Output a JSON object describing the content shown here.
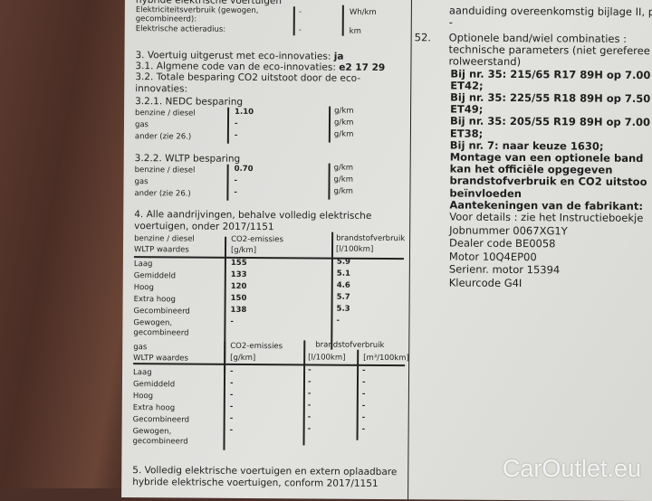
{
  "left": {
    "top_heading": "hybride elektrische voertuigen",
    "elec": [
      {
        "label": "Elektriciteitsverbruik (gewogen,",
        "label2": "gecombineerd):",
        "value": "-",
        "unit": "Wh/km"
      },
      {
        "label": "Elektrische actieradius:",
        "value": "-",
        "unit": "km"
      }
    ],
    "s3": "3. Voertuig uitgerust met eco-innovaties: ",
    "s3_val": "ja",
    "s31": "3.1. Algmene code van de eco-innovaties: ",
    "s31_val": "e2 17 29",
    "s32a": "3.2. Totale besparing CO2 uitstoot door de eco-",
    "s32b": "innovaties:",
    "nedc_title": "3.2.1. NEDC besparing",
    "nedc": [
      {
        "label": "benzine / diesel",
        "value": "1.10",
        "unit": "g/km"
      },
      {
        "label": "gas",
        "value": "-",
        "unit": "g/km"
      },
      {
        "label": "ander (zie 26.)",
        "value": "-",
        "unit": "g/km"
      }
    ],
    "wltp_title": "3.2.2. WLTP besparing",
    "wltp": [
      {
        "label": "benzine / diesel",
        "value": "0.70",
        "unit": "g/km"
      },
      {
        "label": "gas",
        "value": "-",
        "unit": "g/km"
      },
      {
        "label": "ander (zie 26.)",
        "value": "-",
        "unit": "g/km"
      }
    ],
    "s4a": "4. Alle aandrijvingen, behalve volledig elektrische",
    "s4b": "voertuigen, onder 2017/1151",
    "t1": {
      "h1a": "benzine / diesel",
      "h1b": "WLTP waardes",
      "h2a": "CO2-emissies",
      "h2b": "[g/km]",
      "h3a": "brandstofverbruik",
      "h3b": "[l/100km]",
      "rows": [
        {
          "l": "Laag",
          "c": "155",
          "f": "5.9"
        },
        {
          "l": "Gemiddeld",
          "c": "133",
          "f": "5.1"
        },
        {
          "l": "Hoog",
          "c": "120",
          "f": "4.6"
        },
        {
          "l": "Extra hoog",
          "c": "150",
          "f": "5.7"
        },
        {
          "l": "Gecombineerd",
          "c": "138",
          "f": "5.3"
        },
        {
          "l": "Gewogen,",
          "l2": "gecombineerd",
          "c": "-",
          "f": "-"
        }
      ]
    },
    "t2": {
      "h1a": "gas",
      "h1b": "WLTP waardes",
      "h2a": "CO2-emissies",
      "h2b": "[g/km]",
      "h3a": "brandstofverbruik",
      "h3b": "[l/100km]",
      "h4b": "[m³/100km]",
      "rows": [
        {
          "l": "Laag",
          "c": "-",
          "f": "-",
          "g": "-"
        },
        {
          "l": "Gemiddeld",
          "c": "-",
          "f": "-",
          "g": "-"
        },
        {
          "l": "Hoog",
          "c": "-",
          "f": "-",
          "g": "-"
        },
        {
          "l": "Extra hoog",
          "c": "-",
          "f": "-",
          "g": "-"
        },
        {
          "l": "Gecombineerd",
          "c": "-",
          "f": "-",
          "g": "-"
        },
        {
          "l": "Gewogen,",
          "l2": "gecombineerd",
          "c": "-",
          "f": "-",
          "g": "-"
        }
      ]
    },
    "s5a": "5. Volledig elektrische voertuigen en extern oplaadbare",
    "s5b": "hybride elektrische voertuigen, conform 2017/1151"
  },
  "right": {
    "top": "aanduiding overeenkomstig bijlage II, p",
    "dash": "-",
    "num": "52.",
    "lines": [
      "Optionele band/wiel combinaties :",
      "technische parameters (niet gereferee",
      "rolweerstand)"
    ],
    "bold": [
      "Bij nr. 35: 215/65 R17 89H op 7.00",
      "ET42;",
      "Bij nr. 35: 225/55 R18 89H op 7.50",
      "ET49;",
      "Bij nr. 35: 205/55 R19 89H op 7.00",
      "ET38;",
      "Bij nr. 7: naar keuze 1630;",
      "Montage van een optionele band",
      "kan het officiële opgegeven",
      "brandstofverbruik en CO2 uitstoo",
      "beïnvloeden",
      "Aantekeningen van de fabrikant:"
    ],
    "notes": [
      "Voor details : zie het Instructieboekje",
      "Jobnummer 0067XG1Y",
      "Dealer code BE0058",
      "Motor 10Q4EP00",
      "Serienr. motor 15394",
      "Kleurcode      G4I"
    ]
  },
  "watermark": "CarOutlet.eu"
}
